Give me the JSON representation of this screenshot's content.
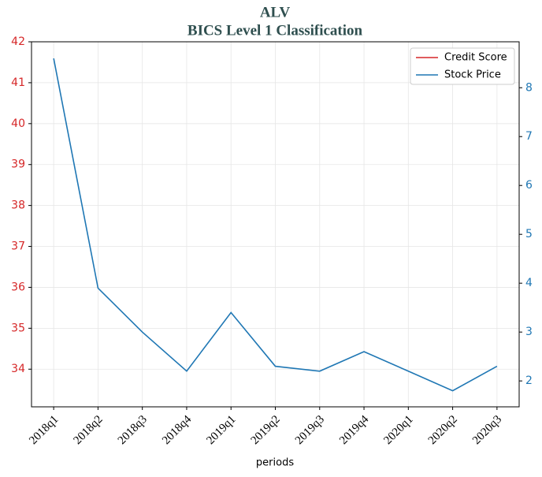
{
  "chart_data": {
    "type": "line",
    "title": "ALV",
    "subtitle": "BICS Level 1 Classification",
    "x_label": "periods",
    "categories": [
      "2018q1",
      "2018q2",
      "2018q3",
      "2018q4",
      "2019q1",
      "2019q2",
      "2019q3",
      "2019q4",
      "2020q1",
      "2020q2",
      "2020q3"
    ],
    "series": [
      {
        "name": "Credit Score",
        "color": "#d62728",
        "axis": "y",
        "values": [
          null,
          null,
          null,
          null,
          null,
          null,
          null,
          null,
          null,
          null,
          null
        ]
      },
      {
        "name": "Stock Price",
        "color": "#1f77b4",
        "axis": "y2",
        "values": [
          8.6,
          3.9,
          3.0,
          2.2,
          3.4,
          2.3,
          2.2,
          2.6,
          2.2,
          1.8,
          2.3
        ]
      }
    ],
    "ylim": [
      33.08,
      42
    ],
    "yticks": [
      34,
      35,
      36,
      37,
      38,
      39,
      40,
      41,
      42
    ],
    "ytick_color": "#d62728",
    "y2lim": [
      1.47,
      8.94
    ],
    "y2ticks": [
      2,
      3,
      4,
      5,
      6,
      7,
      8
    ],
    "y2tick_color": "#1f77b4",
    "grid": true,
    "legend": "upper right"
  }
}
